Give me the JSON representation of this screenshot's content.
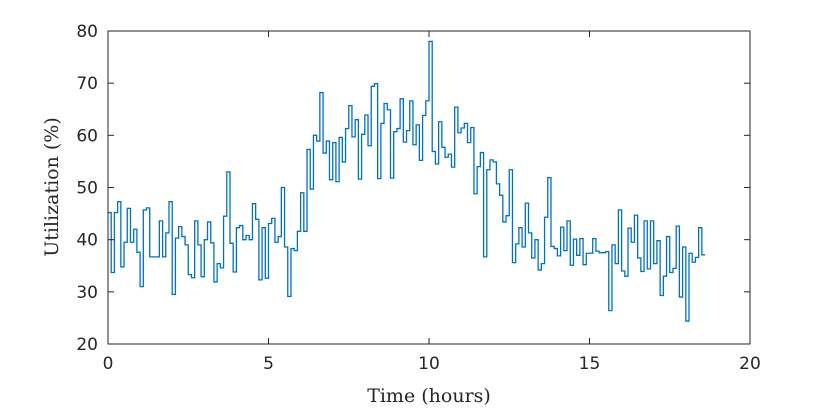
{
  "chart_data": {
    "type": "line",
    "line_style": "stairs",
    "title": "",
    "xlabel": "Time (hours)",
    "ylabel": "Utilization (%)",
    "xlim": [
      0,
      20
    ],
    "ylim": [
      20,
      80
    ],
    "xticks": [
      0,
      5,
      10,
      15,
      20
    ],
    "yticks": [
      20,
      30,
      40,
      50,
      60,
      70,
      80
    ],
    "grid": false,
    "legend": "none",
    "series_color": "#0072BD",
    "series": [
      {
        "x_start": 0,
        "x_step": 0.1,
        "values": [
          45.2,
          33.7,
          45.2,
          47.3,
          34.8,
          39.5,
          46.0,
          39.5,
          42.0,
          37.6,
          31.0,
          45.7,
          46.1,
          36.7,
          36.7,
          36.7,
          43.6,
          36.7,
          41.3,
          47.3,
          29.5,
          40.3,
          42.5,
          40.6,
          39.0,
          33.3,
          32.7,
          43.6,
          39.0,
          32.9,
          40.0,
          43.4,
          39.4,
          31.9,
          35.4,
          34.6,
          44.5,
          53.0,
          39.3,
          33.8,
          42.3,
          42.7,
          40.0,
          40.8,
          40.0,
          46.9,
          43.9,
          32.3,
          42.3,
          32.6,
          43.1,
          44.1,
          39.5,
          40.6,
          50.0,
          38.6,
          29.1,
          38.3,
          37.9,
          41.6,
          49.0,
          41.6,
          57.3,
          49.7,
          60.0,
          58.9,
          68.2,
          56.6,
          58.9,
          51.5,
          58.6,
          51.1,
          59.6,
          54.9,
          61.3,
          65.7,
          59.7,
          63.0,
          51.6,
          60.2,
          63.9,
          58.0,
          69.4,
          69.9,
          51.7,
          62.3,
          66.1,
          64.9,
          51.8,
          60.7,
          61.3,
          67.0,
          58.7,
          60.9,
          66.6,
          58.2,
          62.0,
          55.2,
          63.8,
          66.6,
          78.0,
          56.9,
          54.5,
          62.6,
          57.7,
          55.8,
          56.4,
          53.9,
          65.4,
          60.5,
          61.4,
          62.3,
          58.6,
          61.5,
          48.8,
          54.0,
          56.7,
          36.7,
          53.4,
          55.3,
          54.9,
          50.7,
          48.5,
          43.4,
          44.6,
          53.4,
          35.6,
          39.2,
          42.3,
          38.6,
          47.0,
          41.3,
          36.5,
          40.0,
          34.2,
          35.4,
          44.3,
          51.9,
          38.7,
          38.3,
          36.9,
          42.4,
          37.9,
          43.6,
          35.1,
          40.1,
          37.0,
          40.2,
          35.2,
          37.4,
          37.4,
          40.2,
          37.8,
          37.5,
          37.5,
          37.7,
          26.4,
          39.0,
          35.4,
          45.7,
          34.0,
          33.0,
          42.2,
          39.5,
          44.7,
          36.5,
          33.9,
          43.6,
          34.4,
          43.6,
          35.4,
          39.8,
          29.3,
          33.0,
          40.6,
          33.7,
          34.5,
          42.6,
          29.0,
          38.6,
          24.4,
          37.4,
          35.7,
          36.6,
          42.3,
          37.1
        ]
      }
    ]
  }
}
